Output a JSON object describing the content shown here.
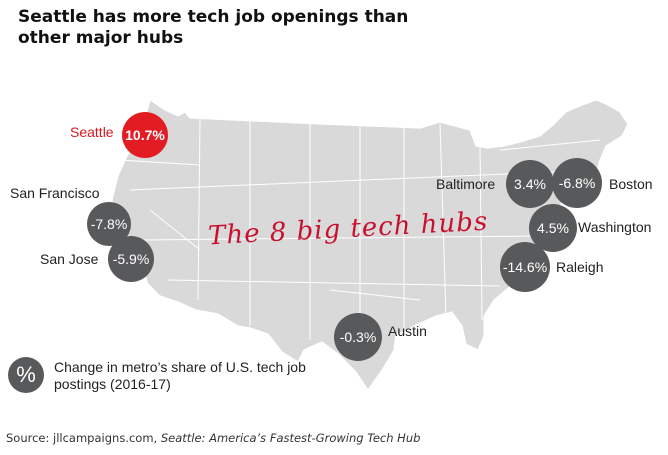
{
  "title": "Seattle has more tech job openings than other major hubs",
  "map_label": "The 8 big tech hubs",
  "legend": {
    "symbol": "%",
    "text": "Change in metro’s share of U.S. tech job postings (2016-17)"
  },
  "source": {
    "prefix": "Source: jllcampaigns.com, ",
    "title": "Seattle: America’s Fastest-Growing Tech Hub"
  },
  "colors": {
    "highlight": "#e31b23",
    "bubble": "#58595b",
    "land": "#d9d9d9",
    "highlight_text": "#d7191f"
  },
  "hubs": [
    {
      "id": "seattle",
      "city": "Seattle",
      "value": "10.7%",
      "change_pct": 10.7,
      "highlight": true
    },
    {
      "id": "san-francisco",
      "city": "San Francisco",
      "value": "-7.8%",
      "change_pct": -7.8,
      "highlight": false
    },
    {
      "id": "san-jose",
      "city": "San Jose",
      "value": "-5.9%",
      "change_pct": -5.9,
      "highlight": false
    },
    {
      "id": "austin",
      "city": "Austin",
      "value": "-0.3%",
      "change_pct": -0.3,
      "highlight": false
    },
    {
      "id": "baltimore",
      "city": "Baltimore",
      "value": "3.4%",
      "change_pct": 3.4,
      "highlight": false
    },
    {
      "id": "boston",
      "city": "Boston",
      "value": "-6.8%",
      "change_pct": -6.8,
      "highlight": false
    },
    {
      "id": "washington",
      "city": "Washington",
      "value": "4.5%",
      "change_pct": 4.5,
      "highlight": false
    },
    {
      "id": "raleigh",
      "city": "Raleigh",
      "value": "-14.6%",
      "change_pct": -14.6,
      "highlight": false
    }
  ]
}
